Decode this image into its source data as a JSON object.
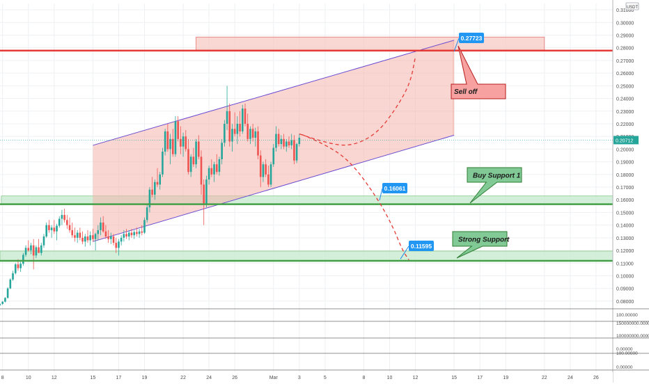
{
  "chart_data": {
    "type": "candlestick",
    "currency_label": "USDT",
    "last_price_label": "0.20712",
    "grid": true,
    "y_ticks": [
      "0.31000",
      "0.30000",
      "0.29000",
      "0.28000",
      "0.27000",
      "0.26000",
      "0.25000",
      "0.24000",
      "0.23000",
      "0.22000",
      "0.21000",
      "0.20000",
      "0.19000",
      "0.18000",
      "0.17000",
      "0.16000",
      "0.15000",
      "0.14000",
      "0.13000",
      "0.12000",
      "0.11000",
      "0.10000",
      "0.09000",
      "0.08000"
    ],
    "y_range": [
      0.075,
      0.315
    ],
    "x_ticks": [
      {
        "label": "8",
        "day": 8
      },
      {
        "label": "10",
        "day": 10
      },
      {
        "label": "12",
        "day": 12
      },
      {
        "label": "15",
        "day": 15
      },
      {
        "label": "17",
        "day": 17
      },
      {
        "label": "19",
        "day": 19
      },
      {
        "label": "22",
        "day": 22
      },
      {
        "label": "24",
        "day": 24
      },
      {
        "label": "26",
        "day": 26
      },
      {
        "label": "Mar",
        "day": 29
      },
      {
        "label": "3",
        "day": 31
      },
      {
        "label": "5",
        "day": 33
      },
      {
        "label": "8",
        "day": 36
      },
      {
        "label": "10",
        "day": 38
      },
      {
        "label": "12",
        "day": 40
      },
      {
        "label": "15",
        "day": 43
      },
      {
        "label": "17",
        "day": 45
      },
      {
        "label": "19",
        "day": 47
      },
      {
        "label": "22",
        "day": 50
      },
      {
        "label": "24",
        "day": 52
      },
      {
        "label": "26",
        "day": 54
      }
    ],
    "x_range": [
      7.8,
      55.3
    ],
    "candles": [
      [
        7.8,
        0.077,
        0.078,
        0.076,
        0.0778
      ],
      [
        8.0,
        0.0778,
        0.08,
        0.077,
        0.0795
      ],
      [
        8.2,
        0.0795,
        0.083,
        0.079,
        0.0825
      ],
      [
        8.4,
        0.0825,
        0.091,
        0.082,
        0.09
      ],
      [
        8.6,
        0.09,
        0.098,
        0.0895,
        0.097
      ],
      [
        8.8,
        0.097,
        0.104,
        0.096,
        0.102
      ],
      [
        9.0,
        0.102,
        0.11,
        0.101,
        0.109
      ],
      [
        9.2,
        0.109,
        0.113,
        0.104,
        0.106
      ],
      [
        9.4,
        0.106,
        0.111,
        0.103,
        0.1095
      ],
      [
        9.6,
        0.1095,
        0.118,
        0.108,
        0.1165
      ],
      [
        9.8,
        0.1165,
        0.124,
        0.115,
        0.122
      ],
      [
        10.0,
        0.122,
        0.128,
        0.119,
        0.12
      ],
      [
        10.2,
        0.12,
        0.126,
        0.117,
        0.124
      ],
      [
        10.4,
        0.124,
        0.129,
        0.105,
        0.116
      ],
      [
        10.6,
        0.116,
        0.124,
        0.114,
        0.1225
      ],
      [
        10.8,
        0.1225,
        0.129,
        0.12,
        0.118
      ],
      [
        11.0,
        0.118,
        0.126,
        0.116,
        0.124
      ],
      [
        11.2,
        0.124,
        0.133,
        0.122,
        0.131
      ],
      [
        11.4,
        0.131,
        0.142,
        0.13,
        0.14
      ],
      [
        11.6,
        0.14,
        0.144,
        0.134,
        0.136
      ],
      [
        11.8,
        0.136,
        0.14,
        0.13,
        0.138
      ],
      [
        12.0,
        0.138,
        0.144,
        0.133,
        0.135
      ],
      [
        12.2,
        0.135,
        0.141,
        0.128,
        0.1395
      ],
      [
        12.4,
        0.1395,
        0.147,
        0.138,
        0.145
      ],
      [
        12.6,
        0.145,
        0.152,
        0.14,
        0.148
      ],
      [
        12.8,
        0.148,
        0.153,
        0.142,
        0.144
      ],
      [
        13.0,
        0.144,
        0.148,
        0.137,
        0.14
      ],
      [
        13.2,
        0.14,
        0.146,
        0.134,
        0.136
      ],
      [
        13.4,
        0.136,
        0.142,
        0.13,
        0.132
      ],
      [
        13.6,
        0.132,
        0.138,
        0.127,
        0.13
      ],
      [
        13.8,
        0.13,
        0.136,
        0.126,
        0.134
      ],
      [
        14.0,
        0.134,
        0.138,
        0.128,
        0.13
      ],
      [
        14.2,
        0.13,
        0.135,
        0.125,
        0.127
      ],
      [
        14.4,
        0.127,
        0.133,
        0.123,
        0.131
      ],
      [
        14.6,
        0.131,
        0.136,
        0.126,
        0.128
      ],
      [
        14.8,
        0.128,
        0.135,
        0.124,
        0.132
      ],
      [
        15.0,
        0.132,
        0.137,
        0.127,
        0.129
      ],
      [
        15.2,
        0.129,
        0.134,
        0.12,
        0.133
      ],
      [
        15.4,
        0.133,
        0.14,
        0.128,
        0.136
      ],
      [
        15.6,
        0.136,
        0.146,
        0.132,
        0.142
      ],
      [
        15.8,
        0.142,
        0.147,
        0.134,
        0.135
      ],
      [
        16.0,
        0.135,
        0.14,
        0.129,
        0.131
      ],
      [
        16.2,
        0.131,
        0.136,
        0.126,
        0.129
      ],
      [
        16.4,
        0.129,
        0.134,
        0.125,
        0.131
      ],
      [
        16.6,
        0.131,
        0.133,
        0.124,
        0.126
      ],
      [
        16.8,
        0.126,
        0.13,
        0.118,
        0.122
      ],
      [
        17.0,
        0.122,
        0.129,
        0.116,
        0.127
      ],
      [
        17.2,
        0.127,
        0.132,
        0.124,
        0.13
      ],
      [
        17.4,
        0.13,
        0.136,
        0.127,
        0.133
      ],
      [
        17.6,
        0.133,
        0.137,
        0.129,
        0.131
      ],
      [
        17.8,
        0.131,
        0.136,
        0.128,
        0.134
      ],
      [
        18.0,
        0.134,
        0.137,
        0.13,
        0.132
      ],
      [
        18.2,
        0.132,
        0.136,
        0.129,
        0.1345
      ],
      [
        18.4,
        0.1345,
        0.138,
        0.131,
        0.133
      ],
      [
        18.6,
        0.133,
        0.137,
        0.13,
        0.135
      ],
      [
        18.8,
        0.135,
        0.14,
        0.132,
        0.134
      ],
      [
        19.0,
        0.134,
        0.146,
        0.133,
        0.144
      ],
      [
        19.2,
        0.144,
        0.156,
        0.142,
        0.154
      ],
      [
        19.4,
        0.154,
        0.17,
        0.15,
        0.168
      ],
      [
        19.6,
        0.168,
        0.178,
        0.162,
        0.164
      ],
      [
        19.8,
        0.164,
        0.176,
        0.16,
        0.174
      ],
      [
        20.0,
        0.174,
        0.185,
        0.17,
        0.172
      ],
      [
        20.2,
        0.172,
        0.182,
        0.168,
        0.18
      ],
      [
        20.4,
        0.18,
        0.201,
        0.178,
        0.198
      ],
      [
        20.6,
        0.198,
        0.216,
        0.195,
        0.214
      ],
      [
        20.8,
        0.214,
        0.22,
        0.198,
        0.2
      ],
      [
        21.0,
        0.2,
        0.212,
        0.188,
        0.208
      ],
      [
        21.2,
        0.208,
        0.216,
        0.194,
        0.196
      ],
      [
        21.4,
        0.196,
        0.226,
        0.194,
        0.222
      ],
      [
        21.6,
        0.222,
        0.226,
        0.206,
        0.208
      ],
      [
        21.8,
        0.208,
        0.218,
        0.196,
        0.202
      ],
      [
        22.0,
        0.202,
        0.213,
        0.194,
        0.21
      ],
      [
        22.2,
        0.21,
        0.215,
        0.198,
        0.2
      ],
      [
        22.4,
        0.2,
        0.208,
        0.18,
        0.182
      ],
      [
        22.6,
        0.182,
        0.196,
        0.178,
        0.194
      ],
      [
        22.8,
        0.194,
        0.201,
        0.186,
        0.188
      ],
      [
        23.0,
        0.188,
        0.208,
        0.185,
        0.206
      ],
      [
        23.2,
        0.206,
        0.211,
        0.192,
        0.194
      ],
      [
        23.4,
        0.194,
        0.199,
        0.164,
        0.172
      ],
      [
        23.6,
        0.172,
        0.176,
        0.14,
        0.156
      ],
      [
        23.8,
        0.156,
        0.179,
        0.154,
        0.176
      ],
      [
        24.0,
        0.176,
        0.187,
        0.172,
        0.185
      ],
      [
        24.2,
        0.185,
        0.192,
        0.178,
        0.18
      ],
      [
        24.4,
        0.18,
        0.19,
        0.174,
        0.188
      ],
      [
        24.6,
        0.188,
        0.196,
        0.18,
        0.182
      ],
      [
        24.8,
        0.182,
        0.194,
        0.179,
        0.192
      ],
      [
        25.0,
        0.192,
        0.208,
        0.188,
        0.205
      ],
      [
        25.2,
        0.205,
        0.223,
        0.202,
        0.22
      ],
      [
        25.4,
        0.22,
        0.25,
        0.215,
        0.23
      ],
      [
        25.6,
        0.23,
        0.236,
        0.202,
        0.206
      ],
      [
        25.8,
        0.206,
        0.22,
        0.198,
        0.216
      ],
      [
        26.0,
        0.216,
        0.229,
        0.21,
        0.212
      ],
      [
        26.2,
        0.212,
        0.226,
        0.204,
        0.22
      ],
      [
        26.4,
        0.22,
        0.23,
        0.21,
        0.214
      ],
      [
        26.6,
        0.214,
        0.235,
        0.212,
        0.232
      ],
      [
        26.8,
        0.232,
        0.236,
        0.218,
        0.22
      ],
      [
        27.0,
        0.22,
        0.228,
        0.206,
        0.208
      ],
      [
        27.2,
        0.208,
        0.218,
        0.204,
        0.216
      ],
      [
        27.4,
        0.216,
        0.22,
        0.206,
        0.209
      ],
      [
        27.6,
        0.209,
        0.217,
        0.202,
        0.214
      ],
      [
        27.8,
        0.214,
        0.218,
        0.192,
        0.195
      ],
      [
        28.0,
        0.195,
        0.199,
        0.17,
        0.178
      ],
      [
        28.2,
        0.178,
        0.19,
        0.174,
        0.188
      ],
      [
        28.4,
        0.188,
        0.192,
        0.178,
        0.18
      ],
      [
        28.6,
        0.18,
        0.187,
        0.17,
        0.172
      ],
      [
        28.8,
        0.172,
        0.19,
        0.17,
        0.188
      ],
      [
        29.0,
        0.188,
        0.204,
        0.186,
        0.201
      ],
      [
        29.2,
        0.201,
        0.218,
        0.198,
        0.212
      ],
      [
        29.4,
        0.212,
        0.216,
        0.202,
        0.204
      ],
      [
        29.6,
        0.204,
        0.211,
        0.2,
        0.208
      ],
      [
        29.8,
        0.208,
        0.212,
        0.2,
        0.202
      ],
      [
        30.0,
        0.202,
        0.208,
        0.198,
        0.206
      ],
      [
        30.2,
        0.206,
        0.21,
        0.201,
        0.203
      ],
      [
        30.4,
        0.203,
        0.212,
        0.2,
        0.207
      ],
      [
        30.6,
        0.207,
        0.211,
        0.188,
        0.191
      ],
      [
        30.8,
        0.191,
        0.205,
        0.189,
        0.204
      ],
      [
        31.0,
        0.204,
        0.212,
        0.202,
        0.209
      ]
    ],
    "channel": {
      "upper": [
        [
          15.0,
          0.203
        ],
        [
          43.0,
          0.286
        ]
      ],
      "lower": [
        [
          15.0,
          0.127
        ],
        [
          43.0,
          0.211
        ]
      ],
      "fill_end_day": 43.0
    },
    "resistance_box": {
      "x": [
        23.0,
        50.0
      ],
      "y": [
        0.2778,
        0.2885
      ]
    },
    "horizontal_lines": [
      {
        "name": "resistance",
        "value": 0.2778,
        "color": "#e53935"
      },
      {
        "name": "buy-support",
        "value": 0.1565,
        "color": "#43a047"
      },
      {
        "name": "strong-support",
        "value": 0.1118,
        "color": "#43a047"
      }
    ],
    "support_zones": [
      {
        "y": [
          0.1565,
          0.163
        ],
        "x_start": 7.9
      },
      {
        "y": [
          0.1118,
          0.1195
        ],
        "x_start": 7.8
      }
    ],
    "projection_up": [
      [
        31.0,
        0.212
      ],
      [
        33.0,
        0.205
      ],
      [
        35.0,
        0.202
      ],
      [
        37.0,
        0.212
      ],
      [
        38.5,
        0.232
      ],
      [
        39.6,
        0.252
      ],
      [
        40.0,
        0.273
      ]
    ],
    "projection_down": [
      [
        31.2,
        0.2115
      ],
      [
        33.0,
        0.204
      ],
      [
        35.0,
        0.19
      ],
      [
        37.0,
        0.162
      ],
      [
        38.2,
        0.14
      ],
      [
        39.0,
        0.12
      ],
      [
        39.5,
        0.1125
      ]
    ],
    "callouts": [
      {
        "text": "0.27723",
        "price": 0.27723,
        "day": 43.0,
        "style": "price"
      },
      {
        "text": "0.16061",
        "price": 0.16061,
        "day": 37.5,
        "style": "price"
      },
      {
        "text": "0.11595",
        "price": 0.11595,
        "day": 39.5,
        "style": "price"
      },
      {
        "text": "Sell off",
        "style": "red"
      },
      {
        "text": "Buy Support 1",
        "style": "green"
      },
      {
        "text": "Strong Support",
        "style": "green"
      }
    ],
    "bottom_panel_labels": [
      "100.00000",
      "150000000.00000",
      "100000000.00000",
      "0.00000",
      "100.00000",
      "0.00000"
    ],
    "colors": {
      "up": "#26a69a",
      "down": "#ef5350",
      "channel_line": "#6a4bd1",
      "channel_fill": "#f4b5ac",
      "callout_blue": "#2196f3",
      "callout_red": "#f7a1a1",
      "callout_green": "#81c995",
      "last_price": "#26a69a"
    }
  }
}
